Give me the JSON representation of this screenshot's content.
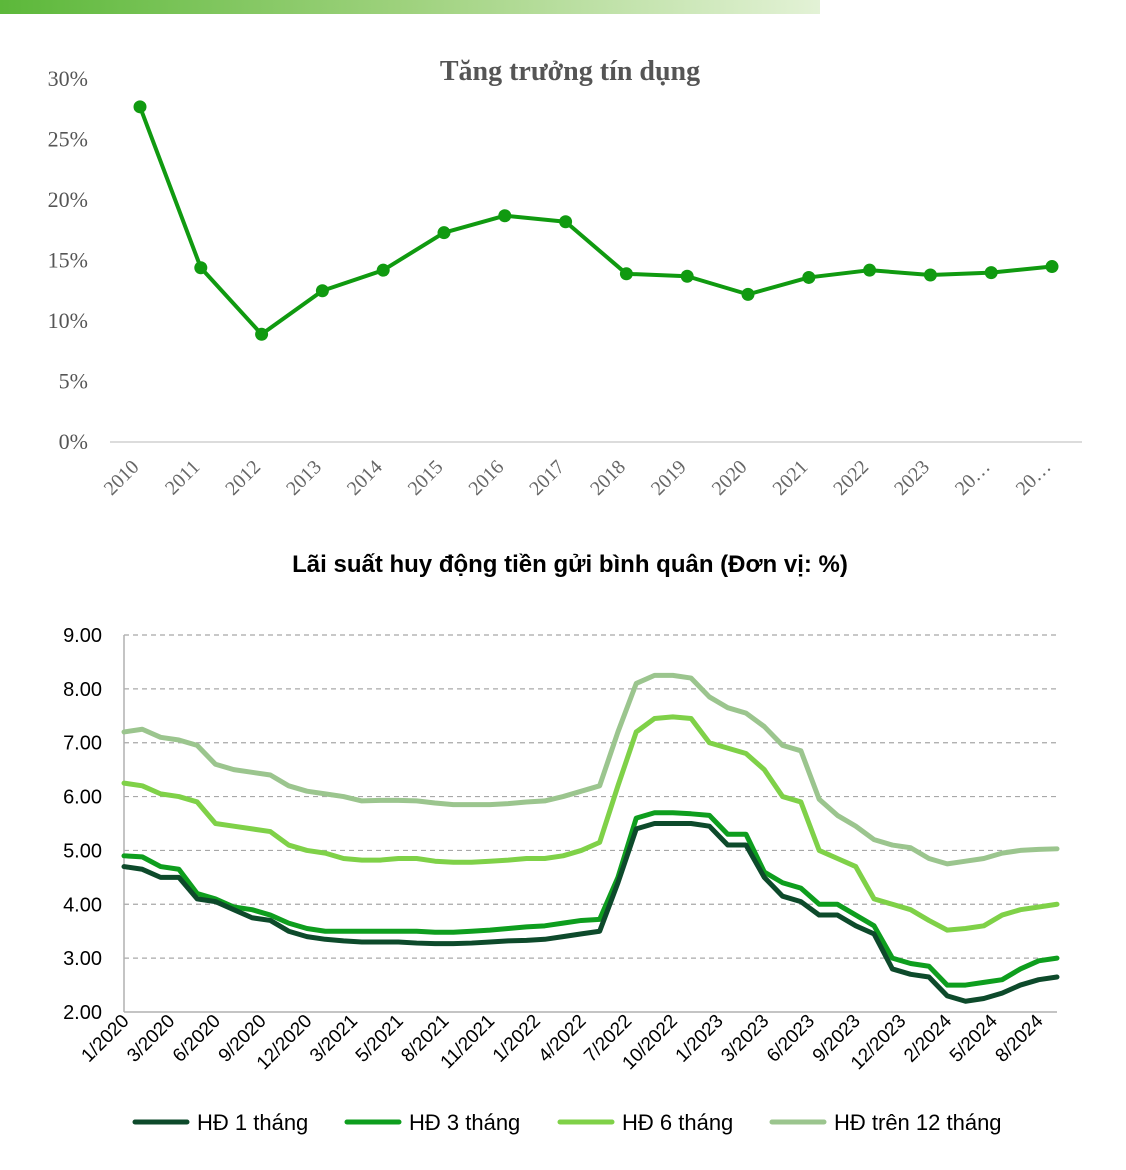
{
  "chart_data": [
    {
      "type": "line",
      "title": "Tăng trưởng tín dụng",
      "categories": [
        "2010",
        "2011",
        "2012",
        "2013",
        "2014",
        "2015",
        "2016",
        "2017",
        "2018",
        "2019",
        "2020",
        "2021",
        "2022",
        "2023",
        "20…",
        "20…"
      ],
      "series": [
        {
          "values": [
            27.7,
            14.4,
            8.9,
            12.5,
            14.2,
            17.3,
            18.7,
            18.2,
            13.9,
            13.7,
            12.2,
            13.6,
            14.2,
            13.8,
            14.0,
            14.5
          ],
          "color": "#109a10"
        }
      ],
      "yticks": [
        "0%",
        "5%",
        "10%",
        "15%",
        "20%",
        "25%",
        "30%"
      ],
      "ylim": [
        0,
        30
      ],
      "xlabel": "",
      "ylabel": "",
      "grid": false
    },
    {
      "type": "line",
      "title": "Lãi suất huy động tiền gửi bình quân (Đơn vị: %)",
      "x_tick_labels": [
        "1/2020",
        "3/2020",
        "6/2020",
        "9/2020",
        "12/2020",
        "3/2021",
        "5/2021",
        "8/2021",
        "11/2021",
        "1/2022",
        "4/2022",
        "7/2022",
        "10/2022",
        "1/2023",
        "3/2023",
        "6/2023",
        "9/2023",
        "12/2023",
        "2/2024",
        "5/2024",
        "8/2024"
      ],
      "yticks": [
        "2.00",
        "3.00",
        "4.00",
        "5.00",
        "6.00",
        "7.00",
        "8.00",
        "9.00"
      ],
      "ylim": [
        2,
        9
      ],
      "grid": true,
      "legend_position": "bottom",
      "series": [
        {
          "name": "HĐ 1 tháng",
          "color": "#0d4a2b",
          "points": [
            [
              0,
              4.7
            ],
            [
              1,
              4.65
            ],
            [
              2,
              4.5
            ],
            [
              3,
              4.5
            ],
            [
              4,
              4.1
            ],
            [
              5,
              4.05
            ],
            [
              6,
              3.9
            ],
            [
              7,
              3.75
            ],
            [
              8,
              3.7
            ],
            [
              9,
              3.5
            ],
            [
              10,
              3.4
            ],
            [
              11,
              3.35
            ],
            [
              12,
              3.32
            ],
            [
              13,
              3.3
            ],
            [
              14,
              3.3
            ],
            [
              15,
              3.3
            ],
            [
              16,
              3.28
            ],
            [
              17,
              3.27
            ],
            [
              18,
              3.27
            ],
            [
              19,
              3.28
            ],
            [
              20,
              3.3
            ],
            [
              21,
              3.32
            ],
            [
              22,
              3.33
            ],
            [
              23,
              3.35
            ],
            [
              24,
              3.4
            ],
            [
              25,
              3.45
            ],
            [
              26,
              3.5
            ],
            [
              27,
              4.4
            ],
            [
              28,
              5.4
            ],
            [
              29,
              5.5
            ],
            [
              30,
              5.5
            ],
            [
              31,
              5.5
            ],
            [
              32,
              5.45
            ],
            [
              33,
              5.1
            ],
            [
              34,
              5.1
            ],
            [
              35,
              4.5
            ],
            [
              36,
              4.15
            ],
            [
              37,
              4.05
            ],
            [
              38,
              3.8
            ],
            [
              39,
              3.8
            ],
            [
              40,
              3.6
            ],
            [
              41,
              3.45
            ],
            [
              42,
              2.8
            ],
            [
              43,
              2.7
            ],
            [
              44,
              2.65
            ],
            [
              45,
              2.3
            ],
            [
              46,
              2.2
            ],
            [
              47,
              2.25
            ],
            [
              48,
              2.35
            ],
            [
              49,
              2.5
            ],
            [
              50,
              2.6
            ],
            [
              51,
              2.65
            ]
          ]
        },
        {
          "name": "HĐ 3 tháng",
          "color": "#0e9e1e",
          "points": [
            [
              0,
              4.9
            ],
            [
              1,
              4.88
            ],
            [
              2,
              4.7
            ],
            [
              3,
              4.65
            ],
            [
              4,
              4.2
            ],
            [
              5,
              4.1
            ],
            [
              6,
              3.95
            ],
            [
              7,
              3.9
            ],
            [
              8,
              3.8
            ],
            [
              9,
              3.65
            ],
            [
              10,
              3.55
            ],
            [
              11,
              3.5
            ],
            [
              12,
              3.5
            ],
            [
              13,
              3.5
            ],
            [
              14,
              3.5
            ],
            [
              15,
              3.5
            ],
            [
              16,
              3.5
            ],
            [
              17,
              3.48
            ],
            [
              18,
              3.48
            ],
            [
              19,
              3.5
            ],
            [
              20,
              3.52
            ],
            [
              21,
              3.55
            ],
            [
              22,
              3.58
            ],
            [
              23,
              3.6
            ],
            [
              24,
              3.65
            ],
            [
              25,
              3.7
            ],
            [
              26,
              3.72
            ],
            [
              27,
              4.5
            ],
            [
              28,
              5.6
            ],
            [
              29,
              5.7
            ],
            [
              30,
              5.7
            ],
            [
              31,
              5.68
            ],
            [
              32,
              5.65
            ],
            [
              33,
              5.3
            ],
            [
              34,
              5.3
            ],
            [
              35,
              4.6
            ],
            [
              36,
              4.4
            ],
            [
              37,
              4.3
            ],
            [
              38,
              4.0
            ],
            [
              39,
              4.0
            ],
            [
              40,
              3.8
            ],
            [
              41,
              3.6
            ],
            [
              42,
              3.0
            ],
            [
              43,
              2.9
            ],
            [
              44,
              2.85
            ],
            [
              45,
              2.5
            ],
            [
              46,
              2.5
            ],
            [
              47,
              2.55
            ],
            [
              48,
              2.6
            ],
            [
              49,
              2.8
            ],
            [
              50,
              2.95
            ],
            [
              51,
              3.0
            ]
          ]
        },
        {
          "name": "HĐ 6 tháng",
          "color": "#7fd148",
          "points": [
            [
              0,
              6.25
            ],
            [
              1,
              6.2
            ],
            [
              2,
              6.05
            ],
            [
              3,
              6.0
            ],
            [
              4,
              5.9
            ],
            [
              5,
              5.5
            ],
            [
              6,
              5.45
            ],
            [
              7,
              5.4
            ],
            [
              8,
              5.35
            ],
            [
              9,
              5.1
            ],
            [
              10,
              5.0
            ],
            [
              11,
              4.95
            ],
            [
              12,
              4.85
            ],
            [
              13,
              4.82
            ],
            [
              14,
              4.82
            ],
            [
              15,
              4.85
            ],
            [
              16,
              4.85
            ],
            [
              17,
              4.8
            ],
            [
              18,
              4.78
            ],
            [
              19,
              4.78
            ],
            [
              20,
              4.8
            ],
            [
              21,
              4.82
            ],
            [
              22,
              4.85
            ],
            [
              23,
              4.85
            ],
            [
              24,
              4.9
            ],
            [
              25,
              5.0
            ],
            [
              26,
              5.15
            ],
            [
              27,
              6.2
            ],
            [
              28,
              7.2
            ],
            [
              29,
              7.45
            ],
            [
              30,
              7.48
            ],
            [
              31,
              7.45
            ],
            [
              32,
              7.0
            ],
            [
              33,
              6.9
            ],
            [
              34,
              6.8
            ],
            [
              35,
              6.5
            ],
            [
              36,
              6.0
            ],
            [
              37,
              5.9
            ],
            [
              38,
              5.0
            ],
            [
              39,
              4.85
            ],
            [
              40,
              4.7
            ],
            [
              41,
              4.1
            ],
            [
              42,
              4.0
            ],
            [
              43,
              3.9
            ],
            [
              44,
              3.7
            ],
            [
              45,
              3.52
            ],
            [
              46,
              3.55
            ],
            [
              47,
              3.6
            ],
            [
              48,
              3.8
            ],
            [
              49,
              3.9
            ],
            [
              50,
              3.95
            ],
            [
              51,
              4.0
            ]
          ]
        },
        {
          "name": "HĐ trên 12 tháng",
          "color": "#9bc58e",
          "points": [
            [
              0,
              7.2
            ],
            [
              1,
              7.25
            ],
            [
              2,
              7.1
            ],
            [
              3,
              7.05
            ],
            [
              4,
              6.95
            ],
            [
              5,
              6.6
            ],
            [
              6,
              6.5
            ],
            [
              7,
              6.45
            ],
            [
              8,
              6.4
            ],
            [
              9,
              6.2
            ],
            [
              10,
              6.1
            ],
            [
              11,
              6.05
            ],
            [
              12,
              6.0
            ],
            [
              13,
              5.92
            ],
            [
              14,
              5.93
            ],
            [
              15,
              5.93
            ],
            [
              16,
              5.92
            ],
            [
              17,
              5.88
            ],
            [
              18,
              5.85
            ],
            [
              19,
              5.85
            ],
            [
              20,
              5.85
            ],
            [
              21,
              5.87
            ],
            [
              22,
              5.9
            ],
            [
              23,
              5.92
            ],
            [
              24,
              6.0
            ],
            [
              25,
              6.1
            ],
            [
              26,
              6.2
            ],
            [
              27,
              7.2
            ],
            [
              28,
              8.1
            ],
            [
              29,
              8.25
            ],
            [
              30,
              8.25
            ],
            [
              31,
              8.2
            ],
            [
              32,
              7.85
            ],
            [
              33,
              7.65
            ],
            [
              34,
              7.55
            ],
            [
              35,
              7.3
            ],
            [
              36,
              6.95
            ],
            [
              37,
              6.85
            ],
            [
              38,
              5.95
            ],
            [
              39,
              5.65
            ],
            [
              40,
              5.45
            ],
            [
              41,
              5.2
            ],
            [
              42,
              5.1
            ],
            [
              43,
              5.05
            ],
            [
              44,
              4.85
            ],
            [
              45,
              4.75
            ],
            [
              46,
              4.8
            ],
            [
              47,
              4.85
            ],
            [
              48,
              4.95
            ],
            [
              49,
              5.0
            ],
            [
              50,
              5.02
            ],
            [
              51,
              5.03
            ]
          ]
        }
      ]
    }
  ]
}
